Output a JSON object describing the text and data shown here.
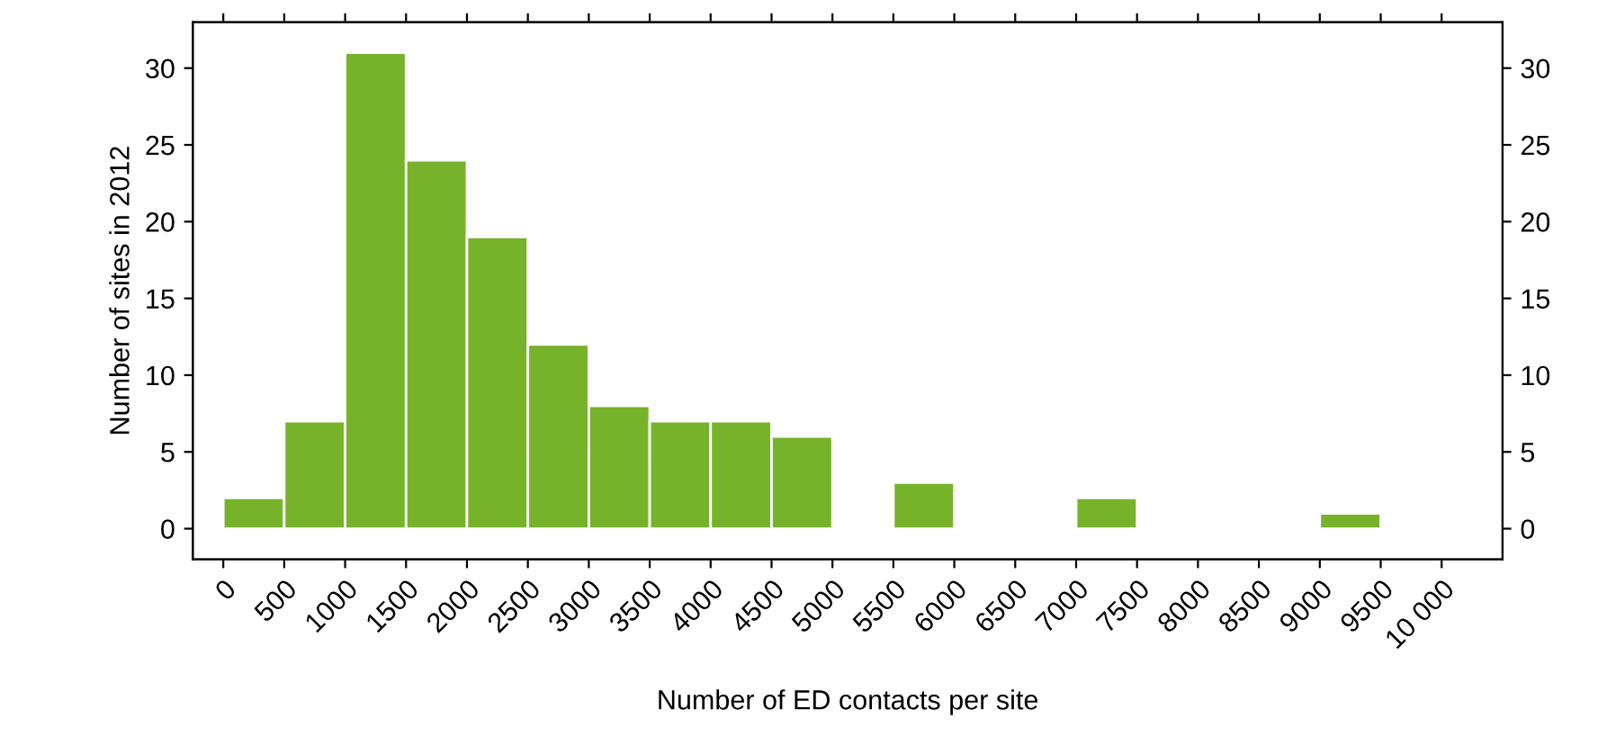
{
  "chart_data": {
    "type": "histogram",
    "xlabel": "Number of ED contacts per site",
    "ylabel": "Number of sites in 2012",
    "bins": [
      0,
      500,
      1000,
      1500,
      2000,
      2500,
      3000,
      3500,
      4000,
      4500,
      5000,
      5500,
      6000,
      6500,
      7000,
      7500,
      8000,
      8500,
      9000,
      9500,
      10000
    ],
    "values": [
      2,
      7,
      31,
      24,
      19,
      12,
      8,
      7,
      7,
      6,
      0,
      3,
      0,
      0,
      2,
      0,
      0,
      0,
      1,
      0
    ],
    "color": "#77b32a",
    "xlim": [
      -250,
      10500
    ],
    "xticks": [
      0,
      500,
      1000,
      1500,
      2000,
      2500,
      3000,
      3500,
      4000,
      4500,
      5000,
      5500,
      6000,
      6500,
      7000,
      7500,
      8000,
      8500,
      9000,
      9500,
      {
        "value": 10000,
        "label": "10 000"
      }
    ],
    "ylim": [
      -2,
      33
    ],
    "yticks": [
      0,
      5,
      10,
      15,
      20,
      25,
      30
    ],
    "y2lim": [
      -2,
      33
    ],
    "y2ticks": [
      0,
      5,
      10,
      15,
      20,
      25,
      30
    ],
    "grid": false
  }
}
